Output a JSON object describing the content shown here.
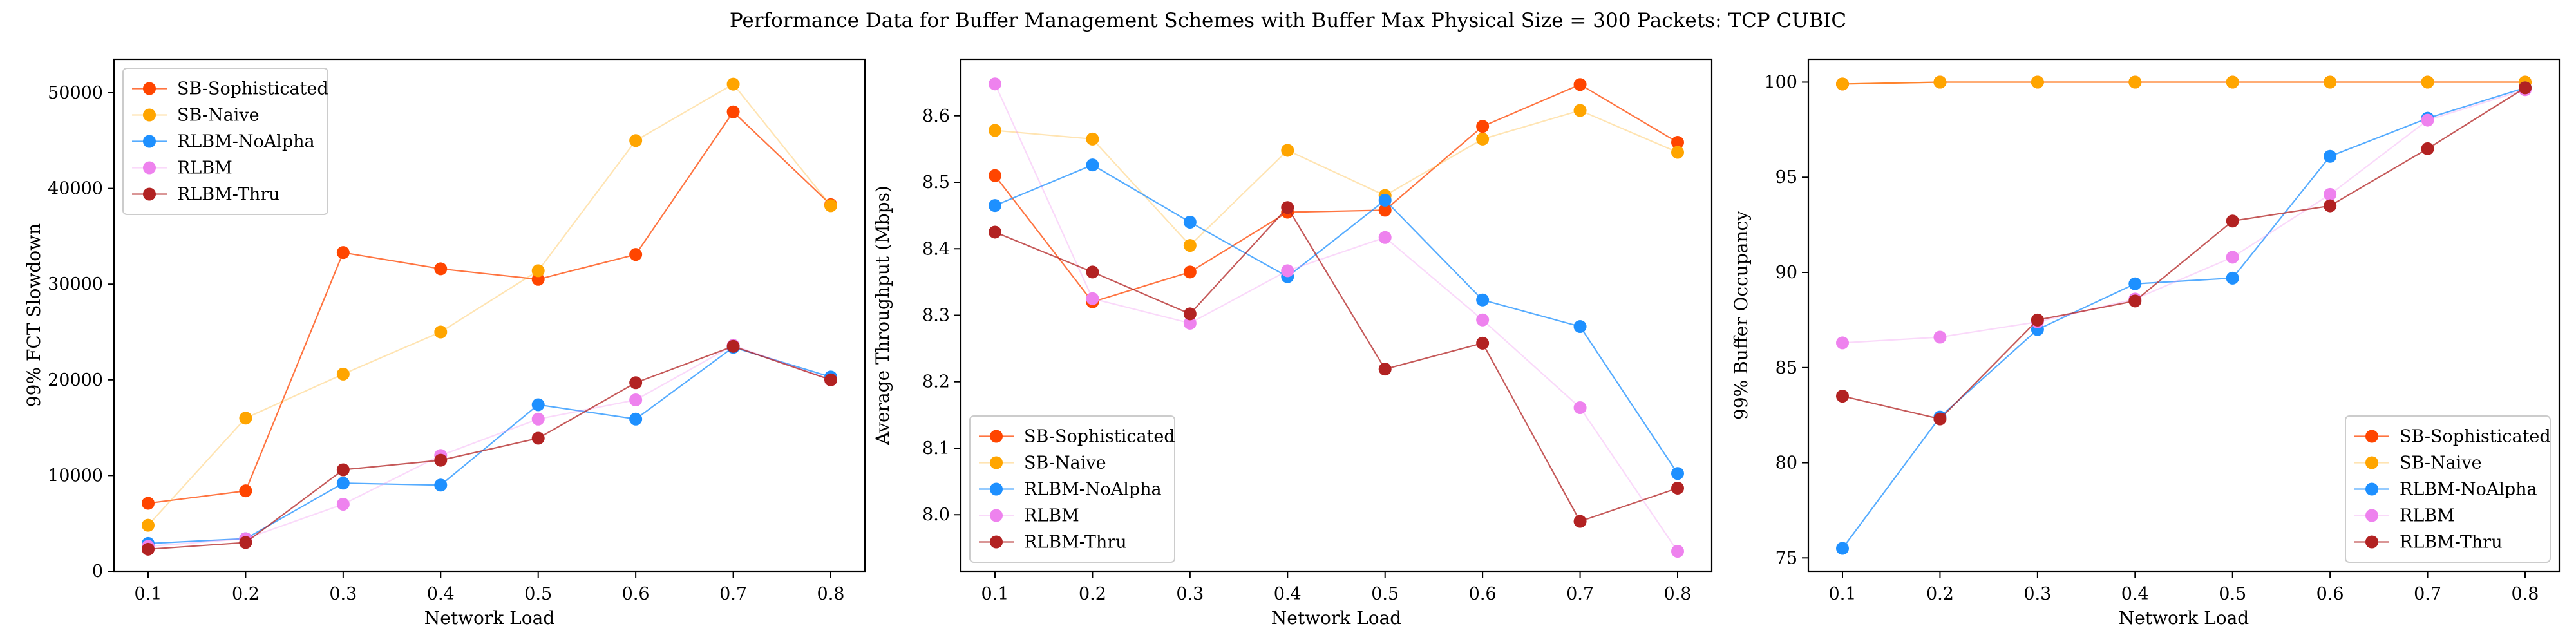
{
  "title": "Performance Data for Buffer Management Schemes with Buffer Max Physical Size = 300 Packets: TCP CUBIC",
  "series_styles": [
    {
      "name": "SB-Sophisticated",
      "color": "#FF4500",
      "line_opacity": 0.75
    },
    {
      "name": "SB-Naive",
      "color": "#FFA500",
      "line_opacity": 0.3
    },
    {
      "name": "RLBM-NoAlpha",
      "color": "#1E90FF",
      "line_opacity": 0.75
    },
    {
      "name": "RLBM",
      "color": "#EE82EE",
      "line_opacity": 0.3
    },
    {
      "name": "RLBM-Thru",
      "color": "#B22222",
      "line_opacity": 0.75
    }
  ],
  "chart_data": [
    {
      "type": "line",
      "xlabel": "Network Load",
      "ylabel": "99% FCT Slowdown",
      "x": [
        0.1,
        0.2,
        0.3,
        0.4,
        0.5,
        0.6,
        0.7,
        0.8
      ],
      "xlim": [
        0.065,
        0.835
      ],
      "ylim": [
        0,
        53500
      ],
      "yticks": [
        0,
        10000,
        20000,
        30000,
        40000,
        50000
      ],
      "ytick_labels": [
        "0",
        "10000",
        "20000",
        "30000",
        "40000",
        "50000"
      ],
      "legend_position": "upper-left",
      "series": [
        {
          "name": "SB-Sophisticated",
          "values": [
            7100,
            8400,
            33300,
            31600,
            30500,
            33100,
            48000,
            38300
          ]
        },
        {
          "name": "SB-Naive",
          "values": [
            4800,
            16000,
            20600,
            25000,
            31400,
            45000,
            50900,
            38200
          ]
        },
        {
          "name": "RLBM-NoAlpha",
          "values": [
            2900,
            3400,
            9200,
            9000,
            17400,
            15900,
            23400,
            20300
          ]
        },
        {
          "name": "RLBM",
          "values": [
            2600,
            3400,
            7000,
            12100,
            15900,
            17900,
            23600,
            20000
          ]
        },
        {
          "name": "RLBM-Thru",
          "values": [
            2300,
            3000,
            10600,
            11600,
            13900,
            19700,
            23500,
            20000
          ]
        }
      ]
    },
    {
      "type": "line",
      "xlabel": "Network Load",
      "ylabel": "Average Throughput (Mbps)",
      "x": [
        0.1,
        0.2,
        0.3,
        0.4,
        0.5,
        0.6,
        0.7,
        0.8
      ],
      "xlim": [
        0.065,
        0.835
      ],
      "ylim": [
        7.915,
        8.685
      ],
      "yticks": [
        8.0,
        8.1,
        8.2,
        8.3,
        8.4,
        8.5,
        8.6
      ],
      "ytick_labels": [
        "8.0",
        "8.1",
        "8.2",
        "8.3",
        "8.4",
        "8.5",
        "8.6"
      ],
      "legend_position": "lower-left",
      "series": [
        {
          "name": "SB-Sophisticated",
          "values": [
            8.51,
            8.32,
            8.365,
            8.455,
            8.458,
            8.584,
            8.647,
            8.56
          ]
        },
        {
          "name": "SB-Naive",
          "values": [
            8.578,
            8.565,
            8.405,
            8.548,
            8.48,
            8.565,
            8.608,
            8.545
          ]
        },
        {
          "name": "RLBM-NoAlpha",
          "values": [
            8.465,
            8.526,
            8.44,
            8.358,
            8.473,
            8.323,
            8.283,
            8.062
          ]
        },
        {
          "name": "RLBM",
          "values": [
            8.648,
            8.325,
            8.288,
            8.367,
            8.417,
            8.293,
            8.161,
            7.945
          ]
        },
        {
          "name": "RLBM-Thru",
          "values": [
            8.425,
            8.365,
            8.302,
            8.462,
            8.219,
            8.258,
            7.99,
            8.04
          ]
        }
      ]
    },
    {
      "type": "line",
      "xlabel": "Network Load",
      "ylabel": "99% Buffer Occupancy",
      "x": [
        0.1,
        0.2,
        0.3,
        0.4,
        0.5,
        0.6,
        0.7,
        0.8
      ],
      "xlim": [
        0.065,
        0.835
      ],
      "ylim": [
        74.3,
        101.2
      ],
      "yticks": [
        75,
        80,
        85,
        90,
        95,
        100
      ],
      "ytick_labels": [
        "75",
        "80",
        "85",
        "90",
        "95",
        "100"
      ],
      "legend_position": "lower-right",
      "series": [
        {
          "name": "SB-Sophisticated",
          "values": [
            99.9,
            100,
            100,
            100,
            100,
            100,
            100,
            100
          ]
        },
        {
          "name": "SB-Naive",
          "values": [
            99.9,
            100,
            100,
            100,
            100,
            100,
            100,
            100
          ]
        },
        {
          "name": "RLBM-NoAlpha",
          "values": [
            75.5,
            82.4,
            87.0,
            89.4,
            89.7,
            96.1,
            98.1,
            99.7
          ]
        },
        {
          "name": "RLBM",
          "values": [
            86.3,
            86.6,
            87.4,
            88.6,
            90.8,
            94.1,
            98.0,
            99.6
          ]
        },
        {
          "name": "RLBM-Thru",
          "values": [
            83.5,
            82.3,
            87.5,
            88.5,
            92.7,
            93.5,
            96.5,
            99.7
          ]
        }
      ]
    }
  ]
}
